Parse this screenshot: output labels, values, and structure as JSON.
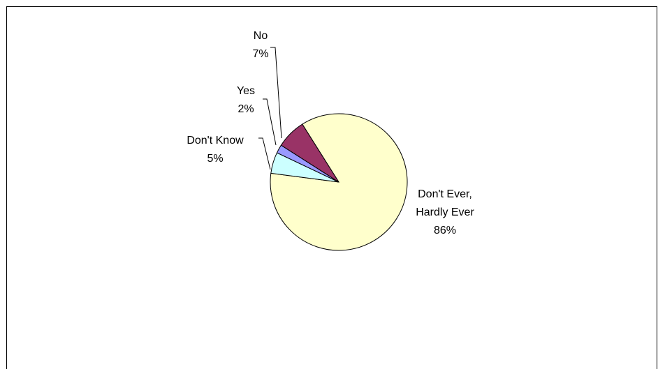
{
  "chart_data": {
    "type": "pie",
    "title": "",
    "slices": [
      {
        "label_lines": [
          "Don't Ever,",
          "Hardly Ever"
        ],
        "pct_label": "86%",
        "value": 86,
        "color": "#ffffcc"
      },
      {
        "label_lines": [
          "Don't Know"
        ],
        "pct_label": "5%",
        "value": 5,
        "color": "#ccffff"
      },
      {
        "label_lines": [
          "Yes"
        ],
        "pct_label": "2%",
        "value": 2,
        "color": "#9999ff"
      },
      {
        "label_lines": [
          "No"
        ],
        "pct_label": "7%",
        "value": 7,
        "color": "#993366"
      }
    ],
    "legend": "none",
    "data_labels": "outside, with leader lines"
  }
}
